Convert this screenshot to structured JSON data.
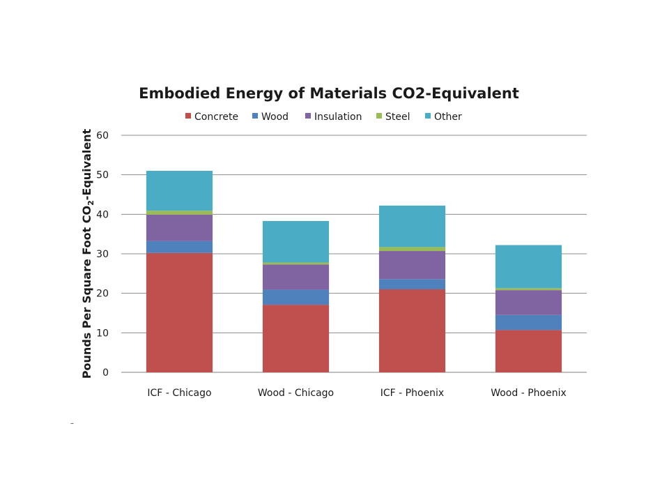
{
  "chart_data": {
    "type": "bar",
    "stacked": true,
    "title": "Embodied Energy of Materials CO2-Equivalent",
    "xlabel": "",
    "ylabel": "Pounds Per Square Foot CO2-Equivalent",
    "ylabel_parts": {
      "before": "Pounds Per Square Foot CO",
      "subscript": "2",
      "after": "-Equivalent"
    },
    "ylim": [
      0,
      60
    ],
    "yticks": [
      0,
      10,
      20,
      30,
      40,
      50,
      60
    ],
    "grid": true,
    "legend_position": "top",
    "categories": [
      "ICF - Chicago",
      "Wood - Chicago",
      "ICF - Phoenix",
      "Wood - Phoenix"
    ],
    "series": [
      {
        "name": "Concrete",
        "color": "#c0504d",
        "values": [
          30.2,
          17.1,
          21.0,
          10.7
        ]
      },
      {
        "name": "Wood",
        "color": "#4f81bd",
        "values": [
          3.0,
          3.8,
          2.6,
          3.8
        ]
      },
      {
        "name": "Insulation",
        "color": "#8064a2",
        "values": [
          6.7,
          6.4,
          7.1,
          6.3
        ]
      },
      {
        "name": "Steel",
        "color": "#9bbb59",
        "values": [
          1.0,
          0.5,
          1.0,
          0.5
        ]
      },
      {
        "name": "Other",
        "color": "#4bacc6",
        "values": [
          10.1,
          10.5,
          10.5,
          10.9
        ]
      }
    ]
  },
  "stray_mark": "–"
}
